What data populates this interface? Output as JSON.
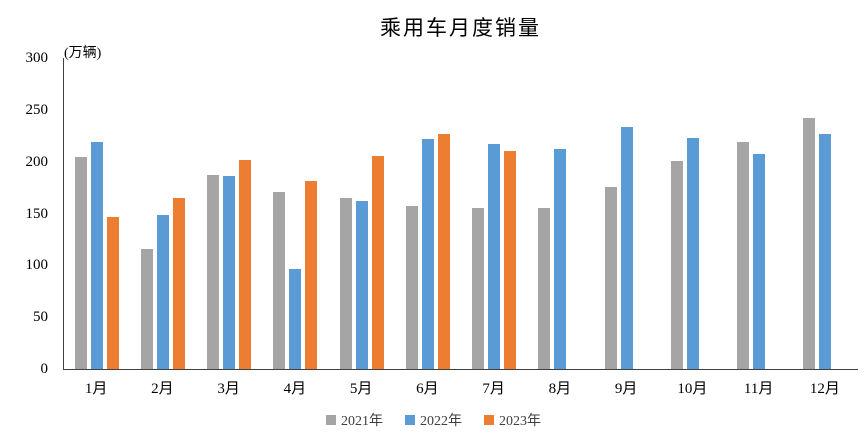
{
  "title": "乘用车月度销量",
  "unit_label": "(万辆)",
  "colors": {
    "series_2021": "#A5A5A5",
    "series_2022": "#5B9BD5",
    "series_2023": "#ED7D31",
    "axis": "#404040",
    "tick_text": "#000000",
    "legend_text": "#404040",
    "background": "#FFFFFF"
  },
  "chart_data": {
    "type": "bar",
    "title": "乘用车月度销量",
    "ylabel": "(万辆)",
    "xlabel": "",
    "categories": [
      "1月",
      "2月",
      "3月",
      "4月",
      "5月",
      "6月",
      "7月",
      "8月",
      "9月",
      "10月",
      "11月",
      "12月"
    ],
    "series": [
      {
        "name": "2021年",
        "color": "#A5A5A5",
        "values": [
          204.5,
          115.6,
          187.4,
          170.4,
          164.6,
          156.9,
          155.1,
          155.2,
          175.1,
          200.7,
          219.2,
          242.2
        ]
      },
      {
        "name": "2022年",
        "color": "#5B9BD5",
        "values": [
          218.6,
          148.7,
          186.4,
          96.5,
          162.3,
          222.2,
          217.4,
          212.5,
          233.2,
          223.1,
          207.5,
          226.3
        ]
      },
      {
        "name": "2023年",
        "color": "#ED7D31",
        "values": [
          146.9,
          165.3,
          201.7,
          181.1,
          205.1,
          226.8,
          210.0,
          null,
          null,
          null,
          null,
          null
        ]
      }
    ],
    "ylim": [
      0,
      300
    ],
    "yticks": [
      0,
      50,
      100,
      150,
      200,
      250,
      300
    ],
    "grid": false,
    "legend_position": "bottom"
  }
}
